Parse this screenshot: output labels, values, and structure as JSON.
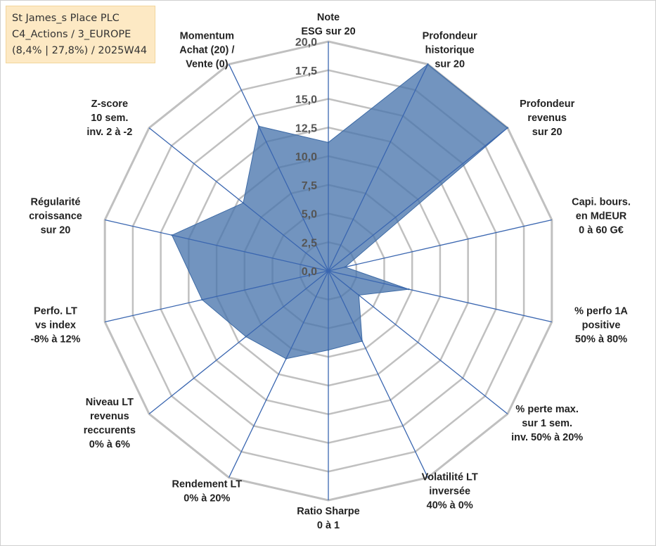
{
  "info": {
    "line1": "St James_s Place PLC",
    "line2": "C4_Actions / 3_EUROPE",
    "line3": "(8,4% | 27,8%) / 2025W44"
  },
  "chart_data": {
    "type": "radar",
    "rmax": 20,
    "ticks": [
      "0,0",
      "2,5",
      "5,0",
      "7,5",
      "10,0",
      "12,5",
      "15,0",
      "17,5",
      "20,0"
    ],
    "grid_color": "#c0c0c0",
    "spoke_color": "#3a66b0",
    "fill_color": "#4a76ad",
    "axes": [
      {
        "label": [
          "Note",
          "ESG sur 20"
        ],
        "value": 11.2
      },
      {
        "label": [
          "Profondeur",
          "historique",
          "sur 20"
        ],
        "value": 20
      },
      {
        "label": [
          "Profondeur",
          "revenus",
          "sur 20"
        ],
        "value": 20
      },
      {
        "label": [
          "Capi. bours.",
          "en MdEUR",
          "0 à 60 G€"
        ],
        "value": 1.5
      },
      {
        "label": [
          "% perfo 1A",
          "positive",
          "50% à 80%"
        ],
        "value": 7.2
      },
      {
        "label": [
          "% perte max.",
          "sur 1 sem.",
          "inv. 50% à 20%"
        ],
        "value": 3.4
      },
      {
        "label": [
          "Volatilité LT",
          "inversée",
          "40% à 0%"
        ],
        "value": 6.8
      },
      {
        "label": [
          "Ratio Sharpe",
          "0 à 1"
        ],
        "value": 6.9
      },
      {
        "label": [
          "Rendement LT",
          "0% à 20%"
        ],
        "value": 8.5
      },
      {
        "label": [
          "Niveau LT",
          "revenus",
          "reccurents",
          "0% à 6%"
        ],
        "value": 9.2
      },
      {
        "label": [
          "Perfo. LT",
          "vs index",
          "-8% à 12%"
        ],
        "value": 11.3
      },
      {
        "label": [
          "Régularité",
          "croissance",
          "sur 20"
        ],
        "value": 14.0
      },
      {
        "label": [
          "Z-score",
          "10 sem.",
          "inv. 2 à -2"
        ],
        "value": 9.5
      },
      {
        "label": [
          "Momentum",
          "Achat (20) /",
          "Vente (0)"
        ],
        "value": 14.0
      }
    ]
  }
}
